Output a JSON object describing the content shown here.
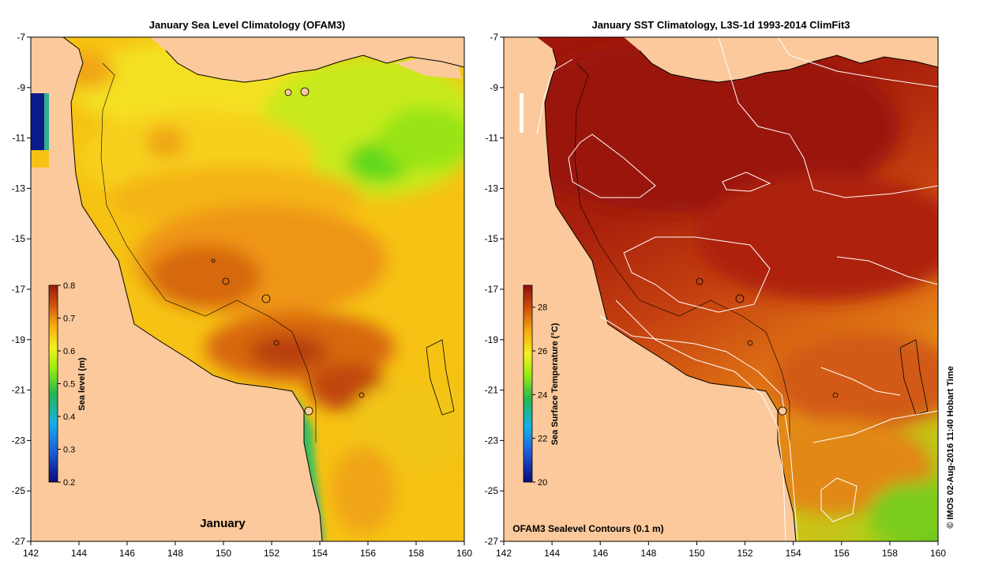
{
  "colors": {
    "land": "#fbc99b",
    "coast": "#000000",
    "contour": "#ffffff"
  },
  "map_left": {
    "title": "January Sea Level Climatology (OFAM3)",
    "annotation": "January",
    "colorbar": {
      "label": "Sea level (m)",
      "range": [
        0.2,
        0.8
      ],
      "ticks": [
        "0.8",
        "0.7",
        "0.6",
        "0.5",
        "0.4",
        "0.3",
        "0.2"
      ]
    }
  },
  "map_right": {
    "title": "January SST Climatology, L3S-1d 1993-2014 ClimFit3",
    "annotation": "OFAM3 Sealevel Contours (0.1 m)",
    "colorbar": {
      "label": "Sea Surface Temperature (°C)",
      "range": [
        20,
        29
      ],
      "ticks": [
        "28",
        "26",
        "24",
        "22",
        "20"
      ]
    }
  },
  "axes": {
    "lon_ticks": [
      "142",
      "144",
      "146",
      "148",
      "150",
      "152",
      "154",
      "156",
      "158",
      "160"
    ],
    "lat_ticks": [
      "-7",
      "-9",
      "-11",
      "-13",
      "-15",
      "-17",
      "-19",
      "-21",
      "-23",
      "-25",
      "-27"
    ],
    "lon_range": [
      142,
      160
    ],
    "lat_range": [
      -7,
      -27
    ]
  },
  "credit": "© IMOS 02-Aug-2016 11:40 Hobart Time"
}
